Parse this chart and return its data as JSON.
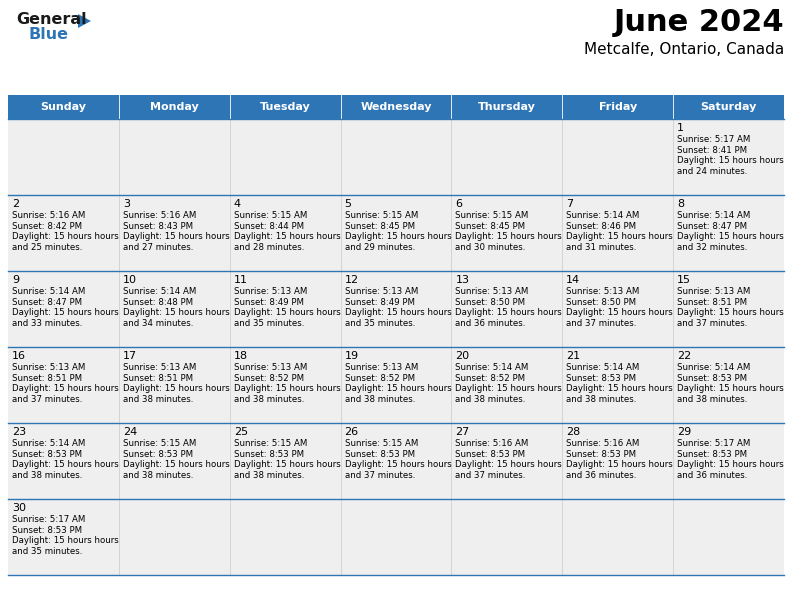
{
  "title": "June 2024",
  "subtitle": "Metcalfe, Ontario, Canada",
  "days_of_week": [
    "Sunday",
    "Monday",
    "Tuesday",
    "Wednesday",
    "Thursday",
    "Friday",
    "Saturday"
  ],
  "header_bg": "#2E75B6",
  "header_text": "#FFFFFF",
  "cell_bg_light": "#EFEFEF",
  "cell_bg_white": "#FFFFFF",
  "border_color": "#2E75B6",
  "text_color": "#000000",
  "calendar": [
    [
      null,
      null,
      null,
      null,
      null,
      null,
      {
        "day": 1,
        "sunrise": "5:17 AM",
        "sunset": "8:41 PM",
        "daylight": "15 hours and 24 minutes."
      }
    ],
    [
      {
        "day": 2,
        "sunrise": "5:16 AM",
        "sunset": "8:42 PM",
        "daylight": "15 hours and 25 minutes."
      },
      {
        "day": 3,
        "sunrise": "5:16 AM",
        "sunset": "8:43 PM",
        "daylight": "15 hours and 27 minutes."
      },
      {
        "day": 4,
        "sunrise": "5:15 AM",
        "sunset": "8:44 PM",
        "daylight": "15 hours and 28 minutes."
      },
      {
        "day": 5,
        "sunrise": "5:15 AM",
        "sunset": "8:45 PM",
        "daylight": "15 hours and 29 minutes."
      },
      {
        "day": 6,
        "sunrise": "5:15 AM",
        "sunset": "8:45 PM",
        "daylight": "15 hours and 30 minutes."
      },
      {
        "day": 7,
        "sunrise": "5:14 AM",
        "sunset": "8:46 PM",
        "daylight": "15 hours and 31 minutes."
      },
      {
        "day": 8,
        "sunrise": "5:14 AM",
        "sunset": "8:47 PM",
        "daylight": "15 hours and 32 minutes."
      }
    ],
    [
      {
        "day": 9,
        "sunrise": "5:14 AM",
        "sunset": "8:47 PM",
        "daylight": "15 hours and 33 minutes."
      },
      {
        "day": 10,
        "sunrise": "5:14 AM",
        "sunset": "8:48 PM",
        "daylight": "15 hours and 34 minutes."
      },
      {
        "day": 11,
        "sunrise": "5:13 AM",
        "sunset": "8:49 PM",
        "daylight": "15 hours and 35 minutes."
      },
      {
        "day": 12,
        "sunrise": "5:13 AM",
        "sunset": "8:49 PM",
        "daylight": "15 hours and 35 minutes."
      },
      {
        "day": 13,
        "sunrise": "5:13 AM",
        "sunset": "8:50 PM",
        "daylight": "15 hours and 36 minutes."
      },
      {
        "day": 14,
        "sunrise": "5:13 AM",
        "sunset": "8:50 PM",
        "daylight": "15 hours and 37 minutes."
      },
      {
        "day": 15,
        "sunrise": "5:13 AM",
        "sunset": "8:51 PM",
        "daylight": "15 hours and 37 minutes."
      }
    ],
    [
      {
        "day": 16,
        "sunrise": "5:13 AM",
        "sunset": "8:51 PM",
        "daylight": "15 hours and 37 minutes."
      },
      {
        "day": 17,
        "sunrise": "5:13 AM",
        "sunset": "8:51 PM",
        "daylight": "15 hours and 38 minutes."
      },
      {
        "day": 18,
        "sunrise": "5:13 AM",
        "sunset": "8:52 PM",
        "daylight": "15 hours and 38 minutes."
      },
      {
        "day": 19,
        "sunrise": "5:13 AM",
        "sunset": "8:52 PM",
        "daylight": "15 hours and 38 minutes."
      },
      {
        "day": 20,
        "sunrise": "5:14 AM",
        "sunset": "8:52 PM",
        "daylight": "15 hours and 38 minutes."
      },
      {
        "day": 21,
        "sunrise": "5:14 AM",
        "sunset": "8:53 PM",
        "daylight": "15 hours and 38 minutes."
      },
      {
        "day": 22,
        "sunrise": "5:14 AM",
        "sunset": "8:53 PM",
        "daylight": "15 hours and 38 minutes."
      }
    ],
    [
      {
        "day": 23,
        "sunrise": "5:14 AM",
        "sunset": "8:53 PM",
        "daylight": "15 hours and 38 minutes."
      },
      {
        "day": 24,
        "sunrise": "5:15 AM",
        "sunset": "8:53 PM",
        "daylight": "15 hours and 38 minutes."
      },
      {
        "day": 25,
        "sunrise": "5:15 AM",
        "sunset": "8:53 PM",
        "daylight": "15 hours and 38 minutes."
      },
      {
        "day": 26,
        "sunrise": "5:15 AM",
        "sunset": "8:53 PM",
        "daylight": "15 hours and 37 minutes."
      },
      {
        "day": 27,
        "sunrise": "5:16 AM",
        "sunset": "8:53 PM",
        "daylight": "15 hours and 37 minutes."
      },
      {
        "day": 28,
        "sunrise": "5:16 AM",
        "sunset": "8:53 PM",
        "daylight": "15 hours and 36 minutes."
      },
      {
        "day": 29,
        "sunrise": "5:17 AM",
        "sunset": "8:53 PM",
        "daylight": "15 hours and 36 minutes."
      }
    ],
    [
      {
        "day": 30,
        "sunrise": "5:17 AM",
        "sunset": "8:53 PM",
        "daylight": "15 hours and 35 minutes."
      },
      null,
      null,
      null,
      null,
      null,
      null
    ]
  ],
  "logo_general_color": "#1a1a1a",
  "logo_blue_color": "#2E75B6",
  "logo_triangle_color": "#2E75B6",
  "fig_width": 7.92,
  "fig_height": 6.12,
  "fig_dpi": 100
}
